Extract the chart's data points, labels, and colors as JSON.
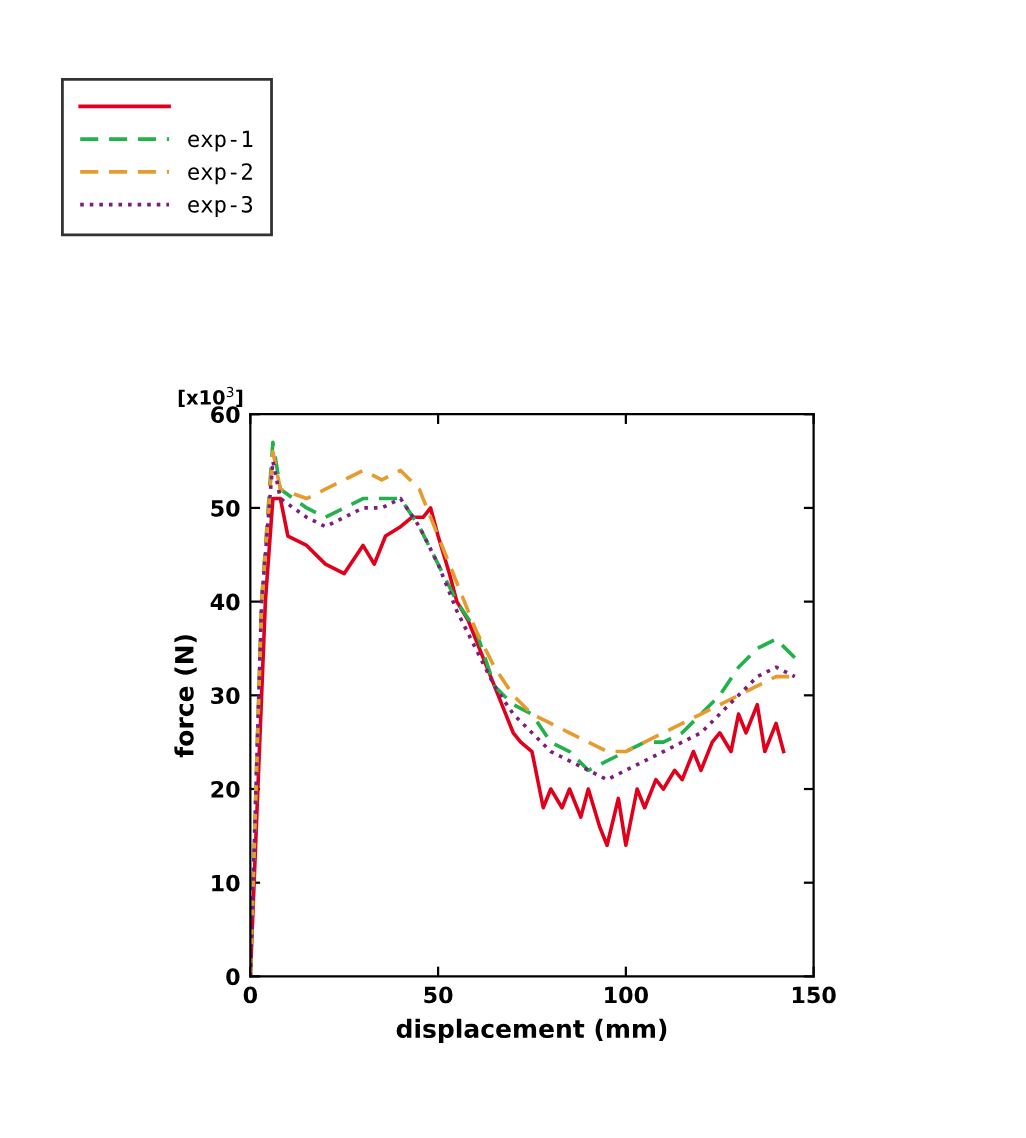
{
  "chart_data": {
    "type": "line",
    "xlabel": "displacement (mm)",
    "ylabel": "force (N)",
    "annotations": [
      "[x10$^{3}$]"
    ],
    "xlim": [
      0,
      150
    ],
    "xticks": [
      0,
      50,
      100,
      150
    ],
    "ylim": [
      0,
      60
    ],
    "yticks": [
      0,
      10,
      20,
      30,
      40,
      50,
      60
    ],
    "grid": false,
    "legend": "top left",
    "series": [
      {
        "color": "#e0001b",
        "line_style": "solid",
        "x": [
          0,
          2,
          4,
          6,
          8,
          10,
          15,
          20,
          25,
          30,
          33,
          36,
          40,
          43,
          46,
          48,
          50,
          53,
          55,
          58,
          60,
          62,
          65,
          68,
          70,
          72,
          75,
          78,
          80,
          83,
          85,
          88,
          90,
          93,
          95,
          98,
          100,
          103,
          105,
          108,
          110,
          113,
          115,
          118,
          120,
          123,
          125,
          128,
          130,
          132,
          135,
          137,
          140,
          142
        ],
        "values": [
          0,
          20,
          40,
          51,
          51,
          47,
          46,
          44,
          43,
          46,
          44,
          47,
          48,
          49,
          49,
          50,
          47,
          43,
          40,
          38,
          36,
          34,
          31,
          28,
          26,
          25,
          24,
          18,
          20,
          18,
          20,
          17,
          20,
          16,
          14,
          19,
          14,
          20,
          18,
          21,
          20,
          22,
          21,
          24,
          22,
          25,
          26,
          24,
          28,
          26,
          29,
          24,
          27,
          24
        ]
      },
      {
        "name": "exp-1",
        "color": "#22b14c",
        "line_style": "dashed",
        "x": [
          0,
          3,
          6,
          8,
          15,
          20,
          30,
          40,
          45,
          50,
          55,
          60,
          65,
          70,
          75,
          80,
          85,
          90,
          95,
          100,
          105,
          110,
          115,
          120,
          125,
          130,
          135,
          140,
          145
        ],
        "values": [
          0,
          40,
          57,
          52,
          50,
          49,
          51,
          51,
          48,
          44,
          40,
          37,
          31,
          29,
          28,
          25,
          24,
          22,
          23,
          24,
          25,
          25,
          26,
          28,
          30,
          33,
          35,
          36,
          34
        ]
      },
      {
        "name": "exp-2",
        "color": "#e69b2e",
        "line_style": "dashed",
        "x": [
          0,
          3,
          6,
          8,
          15,
          20,
          25,
          30,
          35,
          40,
          45,
          50,
          55,
          60,
          65,
          70,
          75,
          80,
          85,
          90,
          95,
          100,
          105,
          110,
          115,
          120,
          125,
          130,
          135,
          140,
          145
        ],
        "values": [
          0,
          40,
          56,
          52,
          51,
          52,
          53,
          54,
          53,
          54,
          52,
          47,
          42,
          37,
          33,
          30,
          28,
          27,
          26,
          25,
          24,
          24,
          25,
          26,
          27,
          28,
          29,
          30,
          31,
          32,
          32
        ]
      },
      {
        "name": "exp-3",
        "color": "#7b1f7b",
        "line_style": "dotted",
        "x": [
          0,
          3,
          6,
          8,
          15,
          20,
          25,
          30,
          35,
          40,
          45,
          50,
          55,
          60,
          65,
          70,
          75,
          80,
          85,
          90,
          95,
          100,
          105,
          110,
          115,
          120,
          125,
          130,
          135,
          140,
          145
        ],
        "values": [
          0,
          40,
          55,
          51,
          49,
          48,
          49,
          50,
          50,
          51,
          48,
          44,
          39,
          35,
          31,
          28,
          26,
          24,
          23,
          22,
          21,
          22,
          23,
          24,
          25,
          26,
          28,
          30,
          32,
          33,
          32
        ]
      }
    ]
  }
}
